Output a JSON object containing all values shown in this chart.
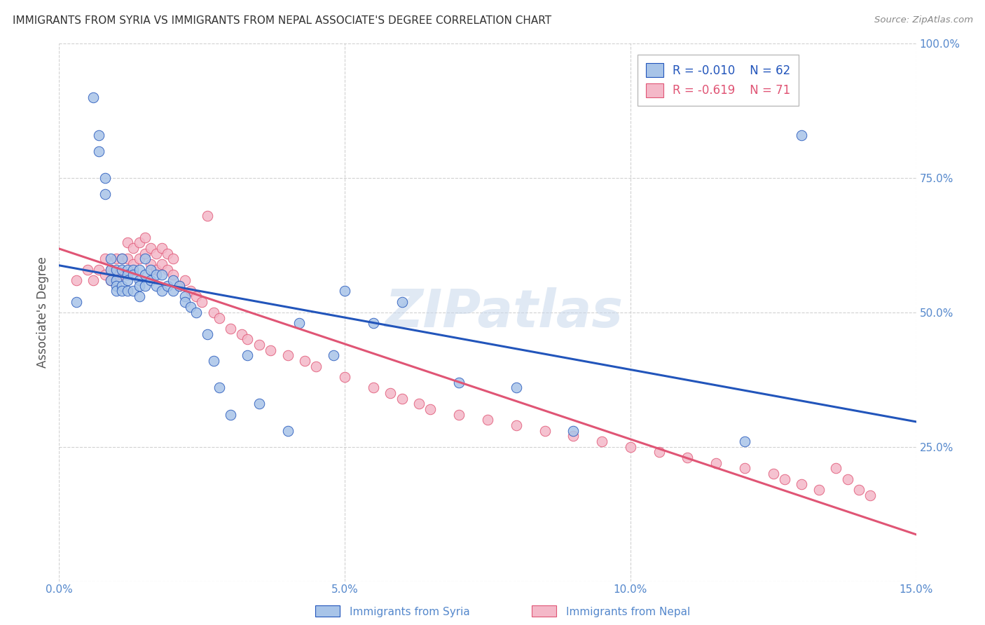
{
  "title": "IMMIGRANTS FROM SYRIA VS IMMIGRANTS FROM NEPAL ASSOCIATE'S DEGREE CORRELATION CHART",
  "source": "Source: ZipAtlas.com",
  "ylabel": "Associate's Degree",
  "xlim": [
    0.0,
    0.15
  ],
  "ylim": [
    0.0,
    1.0
  ],
  "xticks": [
    0.0,
    0.05,
    0.1,
    0.15
  ],
  "xticklabels": [
    "0.0%",
    "5.0%",
    "10.0%",
    "15.0%"
  ],
  "yticks": [
    0.0,
    0.25,
    0.5,
    0.75,
    1.0
  ],
  "yticklabels": [
    "",
    "25.0%",
    "50.0%",
    "75.0%",
    "100.0%"
  ],
  "legend_r_syria": "-0.010",
  "legend_n_syria": "62",
  "legend_r_nepal": "-0.619",
  "legend_n_nepal": "71",
  "color_syria": "#a8c4e8",
  "color_nepal": "#f4b8c8",
  "trendline_syria_color": "#2255bb",
  "trendline_nepal_color": "#e05575",
  "background_color": "#ffffff",
  "grid_color": "#cccccc",
  "title_color": "#333333",
  "axis_color": "#5588cc",
  "watermark": "ZIPatlas",
  "syria_x": [
    0.003,
    0.006,
    0.007,
    0.007,
    0.008,
    0.008,
    0.009,
    0.009,
    0.009,
    0.01,
    0.01,
    0.01,
    0.01,
    0.011,
    0.011,
    0.011,
    0.011,
    0.012,
    0.012,
    0.012,
    0.012,
    0.013,
    0.013,
    0.013,
    0.014,
    0.014,
    0.014,
    0.014,
    0.015,
    0.015,
    0.015,
    0.016,
    0.016,
    0.017,
    0.017,
    0.018,
    0.018,
    0.019,
    0.02,
    0.02,
    0.021,
    0.022,
    0.022,
    0.023,
    0.024,
    0.026,
    0.027,
    0.028,
    0.03,
    0.033,
    0.035,
    0.04,
    0.042,
    0.048,
    0.05,
    0.055,
    0.06,
    0.07,
    0.08,
    0.09,
    0.12,
    0.13
  ],
  "syria_y": [
    0.52,
    0.9,
    0.83,
    0.8,
    0.75,
    0.72,
    0.6,
    0.58,
    0.56,
    0.58,
    0.56,
    0.55,
    0.54,
    0.6,
    0.58,
    0.55,
    0.54,
    0.58,
    0.57,
    0.56,
    0.54,
    0.58,
    0.57,
    0.54,
    0.58,
    0.56,
    0.55,
    0.53,
    0.6,
    0.57,
    0.55,
    0.58,
    0.56,
    0.57,
    0.55,
    0.57,
    0.54,
    0.55,
    0.56,
    0.54,
    0.55,
    0.53,
    0.52,
    0.51,
    0.5,
    0.46,
    0.41,
    0.36,
    0.31,
    0.42,
    0.33,
    0.28,
    0.48,
    0.42,
    0.54,
    0.48,
    0.52,
    0.37,
    0.36,
    0.28,
    0.26,
    0.83
  ],
  "nepal_x": [
    0.003,
    0.005,
    0.006,
    0.007,
    0.008,
    0.008,
    0.009,
    0.009,
    0.01,
    0.01,
    0.011,
    0.011,
    0.012,
    0.012,
    0.013,
    0.013,
    0.014,
    0.014,
    0.015,
    0.015,
    0.016,
    0.016,
    0.017,
    0.017,
    0.018,
    0.018,
    0.019,
    0.019,
    0.02,
    0.02,
    0.021,
    0.022,
    0.023,
    0.024,
    0.025,
    0.026,
    0.027,
    0.028,
    0.03,
    0.032,
    0.033,
    0.035,
    0.037,
    0.04,
    0.043,
    0.045,
    0.05,
    0.055,
    0.058,
    0.06,
    0.063,
    0.065,
    0.07,
    0.075,
    0.08,
    0.085,
    0.09,
    0.095,
    0.1,
    0.105,
    0.11,
    0.115,
    0.12,
    0.125,
    0.127,
    0.13,
    0.133,
    0.136,
    0.138,
    0.14,
    0.142
  ],
  "nepal_y": [
    0.56,
    0.58,
    0.56,
    0.58,
    0.6,
    0.57,
    0.58,
    0.56,
    0.6,
    0.57,
    0.6,
    0.57,
    0.63,
    0.6,
    0.62,
    0.59,
    0.63,
    0.6,
    0.64,
    0.61,
    0.62,
    0.59,
    0.61,
    0.58,
    0.62,
    0.59,
    0.61,
    0.58,
    0.6,
    0.57,
    0.55,
    0.56,
    0.54,
    0.53,
    0.52,
    0.68,
    0.5,
    0.49,
    0.47,
    0.46,
    0.45,
    0.44,
    0.43,
    0.42,
    0.41,
    0.4,
    0.38,
    0.36,
    0.35,
    0.34,
    0.33,
    0.32,
    0.31,
    0.3,
    0.29,
    0.28,
    0.27,
    0.26,
    0.25,
    0.24,
    0.23,
    0.22,
    0.21,
    0.2,
    0.19,
    0.18,
    0.17,
    0.21,
    0.19,
    0.17,
    0.16
  ]
}
